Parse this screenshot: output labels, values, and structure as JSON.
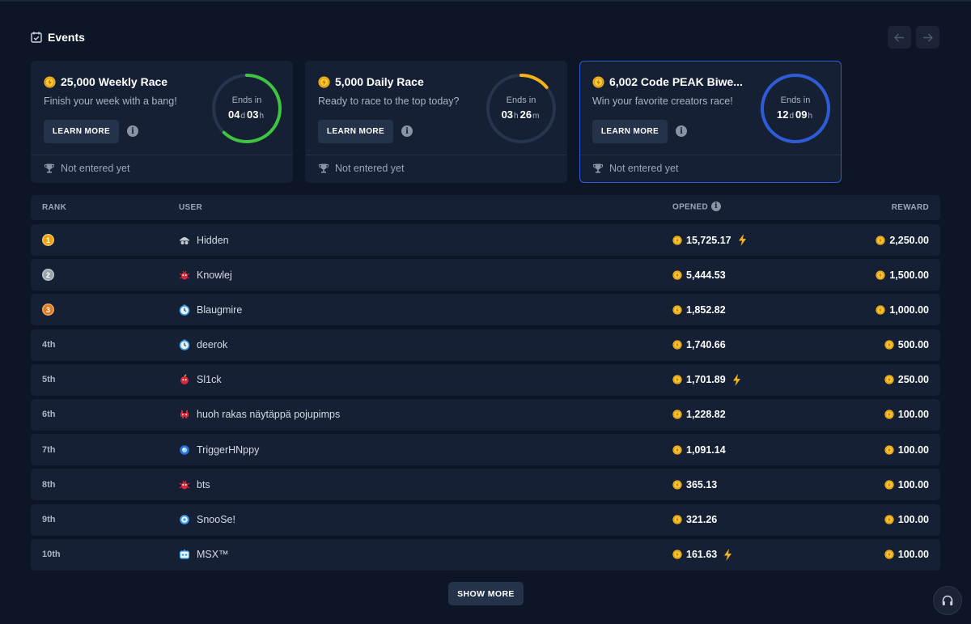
{
  "header": {
    "title": "Events"
  },
  "events": [
    {
      "title": "25,000 Weekly Race",
      "subtitle": "Finish your week with a bang!",
      "learn_more": "LEARN MORE",
      "ends_label": "Ends in",
      "time_a": "04",
      "unit_a": "d",
      "time_b": "03",
      "unit_b": "h",
      "status": "Not entered yet",
      "progress": 0.62,
      "color": "#3ec43e"
    },
    {
      "title": "5,000 Daily Race",
      "subtitle": "Ready to race to the top today?",
      "learn_more": "LEARN MORE",
      "ends_label": "Ends in",
      "time_a": "03",
      "unit_a": "h",
      "time_b": "26",
      "unit_b": "m",
      "status": "Not entered yet",
      "progress": 0.14,
      "color": "#f5b21b"
    },
    {
      "title": "6,002 Code PEAK Biwe...",
      "subtitle": "Win your favorite creators race!",
      "learn_more": "LEARN MORE",
      "ends_label": "Ends in",
      "time_a": "12",
      "unit_a": "d",
      "time_b": "09",
      "unit_b": "h",
      "status": "Not entered yet",
      "progress": 1.0,
      "color": "#2f5bd6"
    }
  ],
  "table": {
    "headers": {
      "rank": "RANK",
      "user": "USER",
      "opened": "OPENED",
      "reward": "REWARD"
    },
    "rows": [
      {
        "rank": "1",
        "medal": "gold",
        "user": "Hidden",
        "avatar": "hidden-icon",
        "opened": "15,725.17",
        "bolt": true,
        "reward": "2,250.00"
      },
      {
        "rank": "2",
        "medal": "silver",
        "user": "Knowlej",
        "avatar": "red-bug-icon",
        "opened": "5,444.53",
        "bolt": false,
        "reward": "1,500.00"
      },
      {
        "rank": "3",
        "medal": "bronze",
        "user": "Blaugmire",
        "avatar": "blue-clock-icon",
        "opened": "1,852.82",
        "bolt": false,
        "reward": "1,000.00"
      },
      {
        "rank": "4th",
        "medal": "",
        "user": "deerok",
        "avatar": "blue-clock-icon",
        "opened": "1,740.66",
        "bolt": false,
        "reward": "500.00"
      },
      {
        "rank": "5th",
        "medal": "",
        "user": "Sl1ck",
        "avatar": "red-bomb-icon",
        "opened": "1,701.89",
        "bolt": true,
        "reward": "250.00"
      },
      {
        "rank": "6th",
        "medal": "",
        "user": "huoh rakas näytäppä pojupimps",
        "avatar": "red-invader-icon",
        "opened": "1,228.82",
        "bolt": false,
        "reward": "100.00"
      },
      {
        "rank": "7th",
        "medal": "",
        "user": "TriggerHNppy",
        "avatar": "blue-orb-icon",
        "opened": "1,091.14",
        "bolt": false,
        "reward": "100.00"
      },
      {
        "rank": "8th",
        "medal": "",
        "user": "bts",
        "avatar": "red-bug-icon",
        "opened": "365.13",
        "bolt": false,
        "reward": "100.00"
      },
      {
        "rank": "9th",
        "medal": "",
        "user": "SnooSe!",
        "avatar": "blue-gear-icon",
        "opened": "321.26",
        "bolt": false,
        "reward": "100.00"
      },
      {
        "rank": "10th",
        "medal": "",
        "user": "MSX™",
        "avatar": "blue-robot-icon",
        "opened": "161.63",
        "bolt": true,
        "reward": "100.00"
      }
    ]
  },
  "show_more": "SHOW MORE",
  "colors": {
    "gold": "#e8a317",
    "silver": "#9aa3ae",
    "bronze": "#e07a1f",
    "accent": "#f5b21b"
  }
}
